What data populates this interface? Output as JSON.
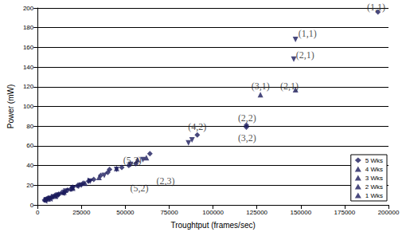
{
  "chart_data": {
    "type": "scatter",
    "xlabel": "Troughtput (frames/sec)",
    "ylabel": "Power (mW)",
    "xlim": [
      0,
      200000
    ],
    "xticks": [
      0,
      25000,
      50000,
      75000,
      100000,
      125000,
      150000,
      175000,
      200000
    ],
    "ylim": [
      0,
      200
    ],
    "yticks": [
      0,
      20,
      40,
      60,
      80,
      100,
      120,
      140,
      160,
      180,
      200
    ],
    "grid": "y",
    "legend": "lower right",
    "series": [
      {
        "name": "5 Wks",
        "color": "#1c1c5c",
        "marker": "diamond",
        "x": [
          4000,
          5000,
          6000,
          8000,
          10000,
          12000,
          14000,
          17000,
          20000,
          23000,
          26000,
          29000,
          32000,
          36000,
          40000,
          41000,
          48000,
          52000,
          56000,
          64000,
          91000,
          119000,
          119000,
          194000
        ],
        "values": [
          5,
          6,
          7,
          8,
          10,
          11,
          13,
          15,
          18,
          20,
          22,
          24,
          26,
          30,
          33,
          36,
          38,
          40,
          42,
          52,
          71,
          79,
          81,
          196
        ]
      },
      {
        "name": "4 Wks",
        "color": "#1c1c5c",
        "marker": "triangle-down",
        "x": [
          5000,
          7000,
          9000,
          12000,
          16000,
          20000,
          25000,
          30000,
          38000,
          45000,
          53000,
          60000,
          86000,
          88000,
          146000,
          147000
        ],
        "values": [
          5,
          6,
          8,
          10,
          14,
          17,
          20,
          24,
          30,
          36,
          41,
          46,
          63,
          66,
          148,
          168
        ]
      },
      {
        "name": "3 Wks",
        "color": "#1c1c5c",
        "marker": "triangle-up",
        "x": [
          6000,
          10000,
          15000,
          20000,
          27000,
          35000,
          45000,
          57000,
          62000,
          127000,
          147000
        ],
        "values": [
          6,
          9,
          13,
          17,
          22,
          28,
          37,
          46,
          48,
          112,
          117
        ]
      },
      {
        "name": "2 Wks",
        "color": "#1c1c5c",
        "marker": "triangle-right",
        "x": [
          5000,
          8000,
          12000,
          16000,
          20000,
          25000,
          30000
        ],
        "values": [
          5,
          7,
          10,
          13,
          16,
          20,
          25
        ]
      },
      {
        "name": "1 Wks",
        "color": "#1c1c5c",
        "marker": "triangle-left",
        "x": [
          4000,
          7000,
          10000,
          14000,
          18000,
          22000
        ],
        "values": [
          4,
          6,
          9,
          12,
          16,
          19
        ]
      }
    ],
    "annotations": [
      {
        "text": "(1,1)",
        "x": 193000,
        "y": 201
      },
      {
        "text": "(1,1)",
        "x": 153800,
        "y": 174
      },
      {
        "text": "(2,1)",
        "x": 152500,
        "y": 152
      },
      {
        "text": "(3,1)",
        "x": 127100,
        "y": 121
      },
      {
        "text": "(2,1)",
        "x": 143500,
        "y": 121
      },
      {
        "text": "(2,2)",
        "x": 119400,
        "y": 88
      },
      {
        "text": "(3,2)",
        "x": 119400,
        "y": 68
      },
      {
        "text": "(4,2)",
        "x": 91000,
        "y": 79
      },
      {
        "text": "(5,3)",
        "x": 54000,
        "y": 45
      },
      {
        "text": "(5,2)",
        "x": 58000,
        "y": 17
      },
      {
        "text": "(2,3)",
        "x": 73000,
        "y": 24
      }
    ]
  }
}
